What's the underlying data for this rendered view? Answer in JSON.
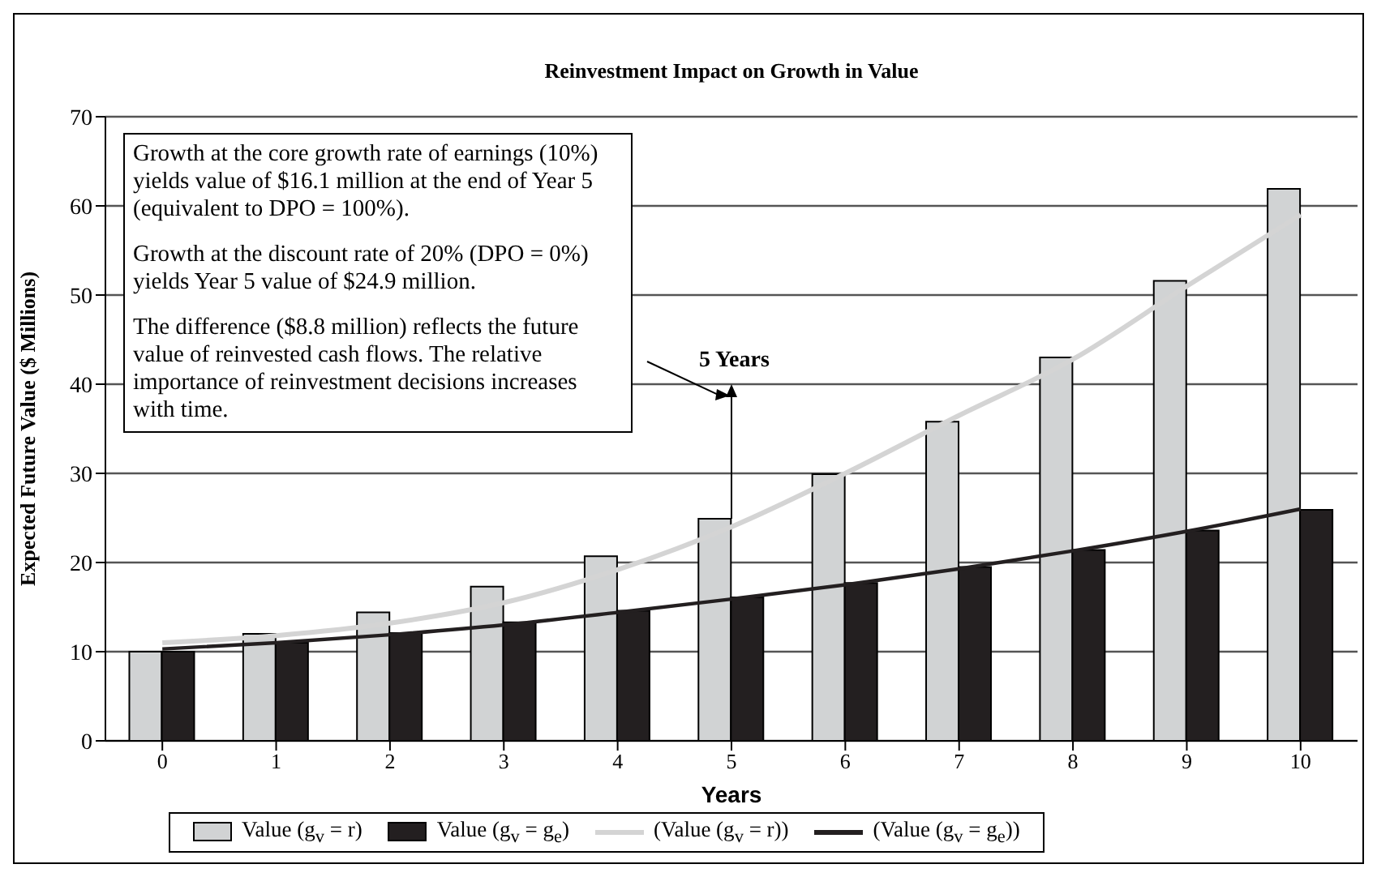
{
  "chart_data": {
    "type": "bar",
    "title": "Reinvestment Impact on Growth in Value",
    "xlabel": "Years",
    "ylabel": "Expected Future Value ($ Millions)",
    "categories": [
      "0",
      "1",
      "2",
      "3",
      "4",
      "5",
      "6",
      "7",
      "8",
      "9",
      "10"
    ],
    "series": [
      {
        "name": "Value (g$_{v}$ = r)",
        "color": "#d1d3d4",
        "values": [
          10,
          12,
          14.4,
          17.3,
          20.7,
          24.9,
          29.9,
          35.8,
          43,
          51.6,
          61.9
        ]
      },
      {
        "name": "Value (g$_{v}$ = g$_{e}$)",
        "color": "#231f20",
        "values": [
          10,
          11,
          12.1,
          13.3,
          14.6,
          16.1,
          17.7,
          19.5,
          21.4,
          23.6,
          25.9
        ]
      },
      {
        "name": "(Value (g$_{v}$ = r))",
        "type": "line",
        "color": "#d4d4d4",
        "values": [
          11,
          11.8,
          13.2,
          15.5,
          19.2,
          24,
          30,
          36.5,
          42.8,
          51,
          59
        ]
      },
      {
        "name": "(Value (g$_{v}$ = g$_{e}$))",
        "type": "line",
        "color": "#231f20",
        "values": [
          10.3,
          11,
          11.9,
          13,
          14.4,
          15.9,
          17.5,
          19.3,
          21.3,
          23.5,
          26
        ]
      }
    ],
    "ylim": [
      0,
      70
    ],
    "yticks": [
      0,
      10,
      20,
      30,
      40,
      50,
      60,
      70
    ],
    "grid": "y",
    "legend": "bottom",
    "marker": "none",
    "annotations": [
      "Growth at the core growth rate of earnings (10%) yields value of $16.1 million at the end of Year 5 (equivalent to DPO = 100%).",
      "Growth at the discount rate of 20% (DPO = 0%) yields Year 5 value of $24.9 million.",
      "The difference ($8.8 million) reflects the future value of reinvested cash flows. The relative importance of reinvestment decisions increases with time.",
      {
        "text": "5 Years",
        "x": "5",
        "y": 24.9
      }
    ]
  }
}
